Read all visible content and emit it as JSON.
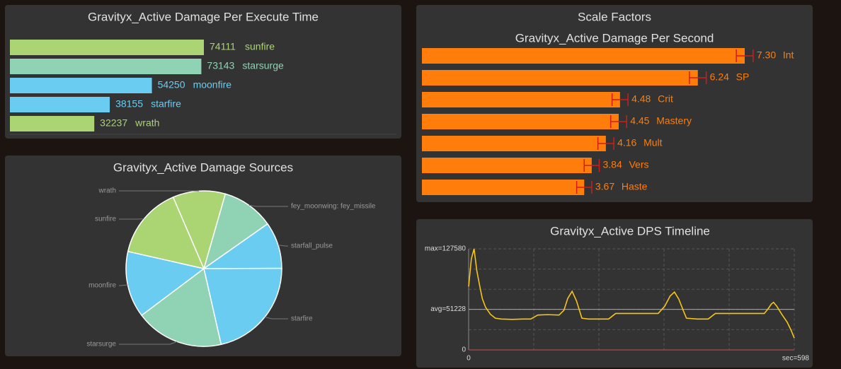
{
  "chart_data": [
    {
      "type": "hbar",
      "title": "Gravityx_Active Damage Per Execute Time",
      "categories": [
        "sunfire",
        "starsurge",
        "moonfire",
        "starfire",
        "wrath"
      ],
      "values": [
        74111,
        73143,
        54250,
        38155,
        32237
      ],
      "colors": [
        "#abd473",
        "#8fd3b4",
        "#69ccf0",
        "#69ccf0",
        "#abd473"
      ]
    },
    {
      "type": "pie",
      "title": "Gravityx_Active Damage Sources",
      "categories": [
        "fey_moonwing: fey_missile",
        "starfall_pulse",
        "starfire",
        "starsurge",
        "moonfire",
        "sunfire",
        "wrath"
      ],
      "values": [
        10.8,
        9.7,
        21.5,
        18.3,
        13.8,
        15.0,
        10.9
      ],
      "colors": [
        "#8fd3b4",
        "#69ccf0",
        "#69ccf0",
        "#8fd3b4",
        "#69ccf0",
        "#abd473",
        "#abd473"
      ]
    },
    {
      "type": "errorbar",
      "title": "Scale Factors",
      "subtitle": "Gravityx_Active Damage Per Second",
      "categories": [
        "Int",
        "SP",
        "Crit",
        "Mastery",
        "Mult",
        "Vers",
        "Haste"
      ],
      "values": [
        7.3,
        6.24,
        4.48,
        4.45,
        4.16,
        3.84,
        3.67
      ],
      "value_labels": [
        "7.30",
        "6.24",
        "4.48",
        "4.45",
        "4.16",
        "3.84",
        "3.67"
      ],
      "errors": [
        0.19,
        0.19,
        0.18,
        0.18,
        0.18,
        0.17,
        0.17
      ],
      "color": "#ff7d0a",
      "error_color": "#d41b1b"
    },
    {
      "type": "line",
      "title": "Gravityx_Active DPS Timeline",
      "x": [
        0,
        5,
        10,
        15,
        20,
        25,
        31,
        40,
        49,
        60,
        80,
        100,
        114,
        127,
        145,
        166,
        175,
        182,
        190,
        198,
        208,
        220,
        240,
        257,
        270,
        300,
        330,
        348,
        360,
        370,
        378,
        386,
        394,
        400,
        420,
        440,
        453,
        480,
        510,
        543,
        550,
        556,
        560,
        566,
        575,
        585,
        592,
        598
      ],
      "series": [
        {
          "color": "#f5c518",
          "values": [
            80000,
            115000,
            127580,
            100000,
            82000,
            65000,
            54000,
            45000,
            40000,
            39000,
            38500,
            39000,
            39000,
            44000,
            44500,
            44000,
            50000,
            65000,
            74000,
            62000,
            40000,
            39000,
            39000,
            39000,
            46000,
            46000,
            46000,
            46000,
            55000,
            68000,
            73000,
            64000,
            50000,
            40000,
            39000,
            39000,
            46000,
            46000,
            46000,
            46000,
            52000,
            58000,
            60000,
            55000,
            45000,
            35000,
            25000,
            15000
          ]
        }
      ],
      "xlim": [
        0,
        598
      ],
      "ylim": [
        0,
        127580
      ],
      "xticks": [
        0,
        {
          "value": 598,
          "label": "sec=598"
        }
      ],
      "yticks": [
        0,
        {
          "value": 51228,
          "label": "avg=51228"
        },
        {
          "value": 127580,
          "label": "max=127580"
        }
      ]
    }
  ]
}
